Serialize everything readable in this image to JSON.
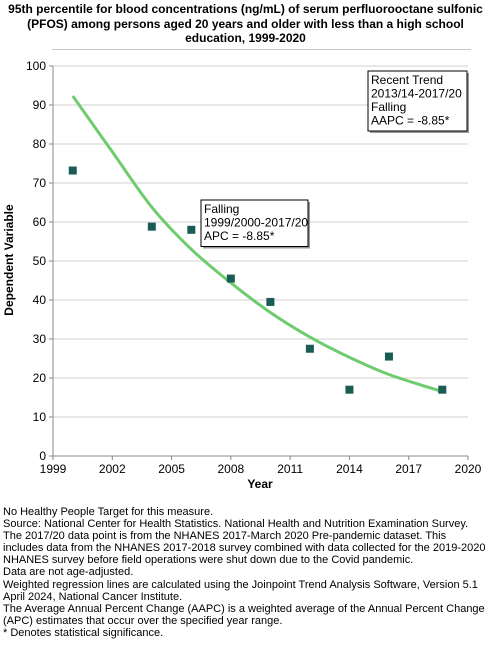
{
  "title": "95th percentile for blood concentrations (ng/mL) of serum perfluorooctane sulfonic\n(PFOS) among persons aged 20 years and older with less than a high school\neducation, 1999-2020",
  "chart_data": {
    "type": "scatter",
    "xlabel": "Year",
    "ylabel": "Dependent Variable",
    "xlim": [
      1999,
      2020
    ],
    "ylim": [
      0,
      100
    ],
    "xticks": [
      1999,
      2002,
      2005,
      2008,
      2011,
      2014,
      2017,
      2020
    ],
    "yticks": [
      0,
      10,
      20,
      30,
      40,
      50,
      60,
      70,
      80,
      90,
      100
    ],
    "points": [
      {
        "x": 2000,
        "y": 73.2
      },
      {
        "x": 2004,
        "y": 58.8
      },
      {
        "x": 2006,
        "y": 58.0
      },
      {
        "x": 2008,
        "y": 45.5
      },
      {
        "x": 2010,
        "y": 39.5
      },
      {
        "x": 2012,
        "y": 27.5
      },
      {
        "x": 2014,
        "y": 17.0
      },
      {
        "x": 2016,
        "y": 25.5
      },
      {
        "x": 2018.7,
        "y": 17.0
      }
    ],
    "trend_line": [
      {
        "x": 2000,
        "y": 92.3
      },
      {
        "x": 2002,
        "y": 78.0
      },
      {
        "x": 2004,
        "y": 63.8
      },
      {
        "x": 2006,
        "y": 53.0
      },
      {
        "x": 2008,
        "y": 44.4
      },
      {
        "x": 2010,
        "y": 36.8
      },
      {
        "x": 2012,
        "y": 30.5
      },
      {
        "x": 2014,
        "y": 25.3
      },
      {
        "x": 2016,
        "y": 20.9
      },
      {
        "x": 2018.7,
        "y": 16.5
      }
    ],
    "colors": {
      "points": "#1a5c55",
      "trend": "#6ecc6e",
      "grid": "#d0d0d0",
      "axis": "#888888"
    },
    "annotations": [
      {
        "lines": [
          "Falling",
          "1999/2000-2017/20",
          "APC = -8.85*"
        ]
      },
      {
        "lines": [
          "Recent Trend",
          "2013/14-2017/20",
          "Falling",
          "AAPC = -8.85*"
        ]
      }
    ]
  },
  "notes": [
    "No Healthy People Target for this measure.",
    "Source: National Center for Health Statistics. National Health and Nutrition Examination Survey.",
    "The 2017/20 data point is from the NHANES 2017-March 2020 Pre-pandemic dataset. This includes data from the NHANES 2017-2018 survey combined with data collected for the 2019-2020 NHANES survey before field operations were shut down due to the Covid pandemic.",
    "Data are not age-adjusted.",
    "Weighted regression lines are calculated using the Joinpoint Trend Analysis Software, Version 5.1 April 2024, National Cancer Institute.",
    "The Average Annual Percent Change (AAPC) is a weighted average of the Annual Percent Change (APC) estimates that occur over the specified year range.",
    "* Denotes statistical significance."
  ]
}
